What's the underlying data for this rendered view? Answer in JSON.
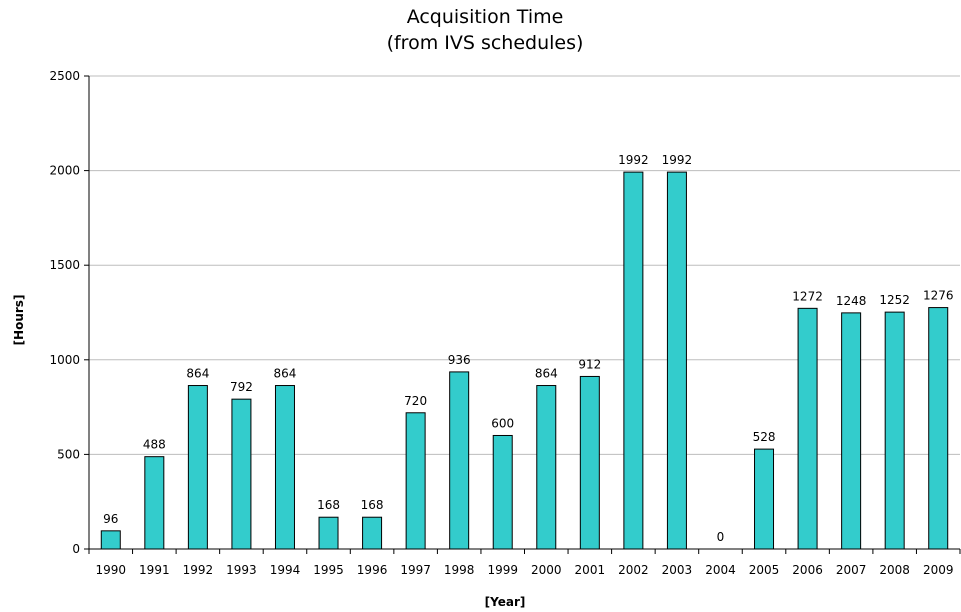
{
  "chart_data": {
    "type": "bar",
    "title": "Acquisition Time",
    "subtitle": "(from IVS schedules)",
    "xlabel": "[Year]",
    "ylabel": "[Hours]",
    "ylim": [
      0,
      2500
    ],
    "yticks": [
      0,
      500,
      1000,
      1500,
      2000,
      2500
    ],
    "grid": true,
    "bar_color": "#33CCCC",
    "categories": [
      "1990",
      "1991",
      "1992",
      "1993",
      "1994",
      "1995",
      "1996",
      "1997",
      "1998",
      "1999",
      "2000",
      "2001",
      "2002",
      "2003",
      "2004",
      "2005",
      "2006",
      "2007",
      "2008",
      "2009"
    ],
    "values": [
      96,
      488,
      864,
      792,
      864,
      168,
      168,
      720,
      936,
      600,
      864,
      912,
      1992,
      1992,
      0,
      528,
      1272,
      1248,
      1252,
      1276
    ]
  }
}
